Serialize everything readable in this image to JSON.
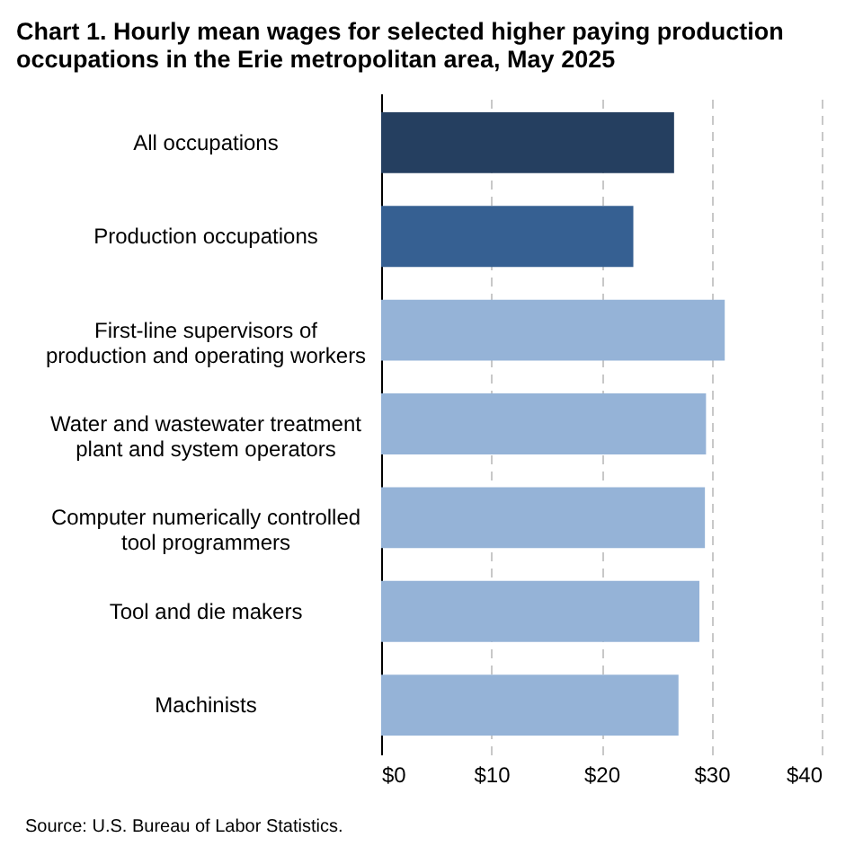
{
  "chart_data": {
    "type": "bar",
    "orientation": "horizontal",
    "title": "Chart 1. Hourly mean wages for selected higher paying production occupations in the Erie metropolitan area, May 2025",
    "categories": [
      "All occupations",
      "Production occupations",
      "First-line supervisors of production and operating workers",
      "Water and wastewater treatment plant and system operators",
      "Computer numerically controlled tool programmers",
      "Tool and die makers",
      "Machinists"
    ],
    "values": [
      26.6,
      22.9,
      31.2,
      29.5,
      29.4,
      28.9,
      27.0
    ],
    "colors": [
      "#253f60",
      "#366092",
      "#95b3d7",
      "#95b3d7",
      "#95b3d7",
      "#95b3d7",
      "#95b3d7"
    ],
    "xlim": [
      0,
      40
    ],
    "xticks": [
      {
        "value": 0,
        "label": "$0"
      },
      {
        "value": 10,
        "label": "$10"
      },
      {
        "value": 20,
        "label": "$20"
      },
      {
        "value": 30,
        "label": "$30"
      },
      {
        "value": 40,
        "label": "$40"
      }
    ],
    "grid": "x",
    "legend": false,
    "annotations": [
      "Source: U.S. Bureau of Labor Statistics."
    ]
  }
}
